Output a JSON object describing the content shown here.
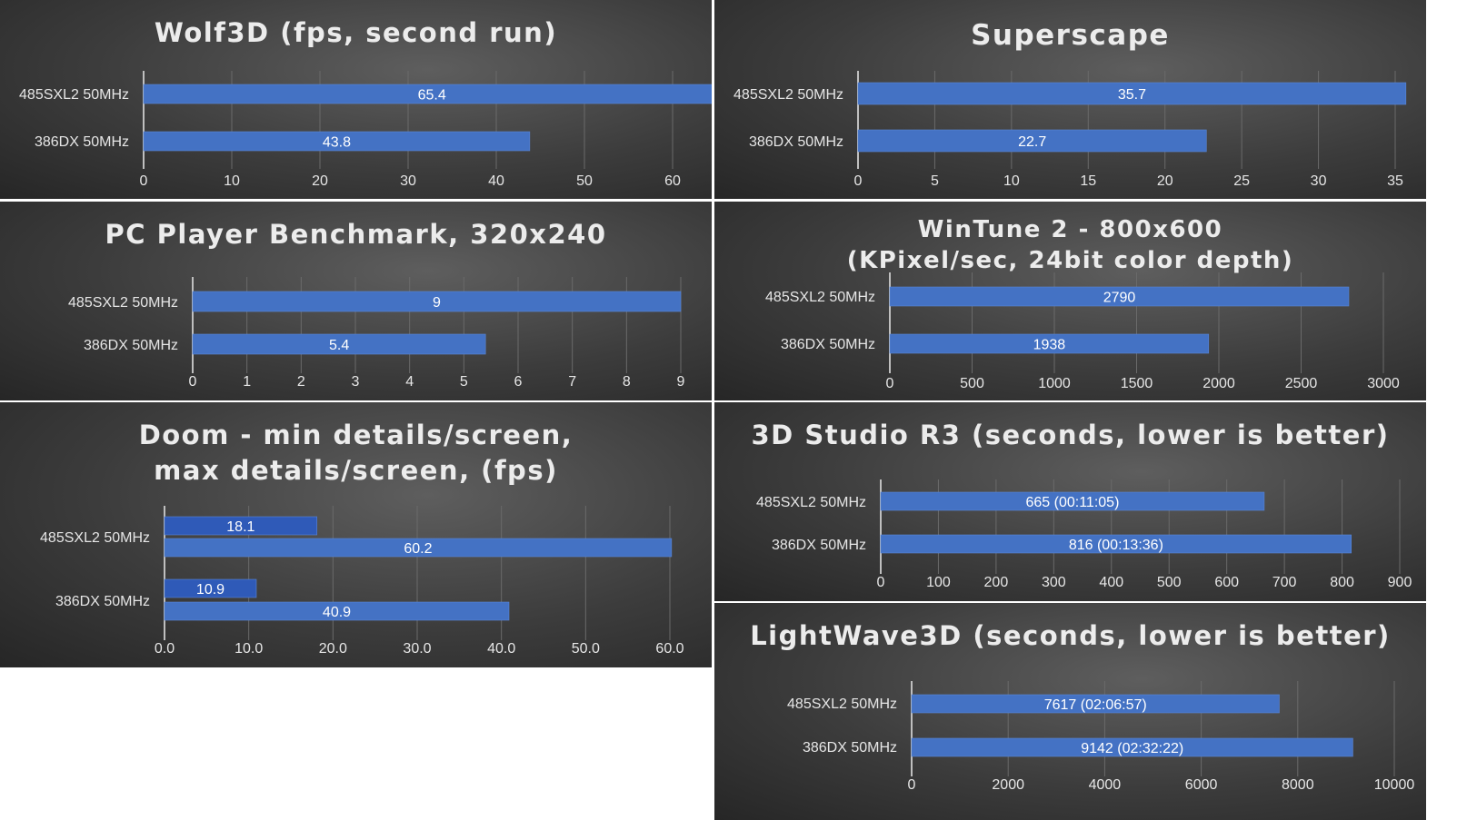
{
  "chart_data": [
    {
      "type": "bar",
      "orientation": "horizontal",
      "title": "Wolf3D (fps, second run)",
      "categories": [
        "485SXL2 50MHz",
        "386DX 50MHz"
      ],
      "series": [
        {
          "values": [
            65.4,
            43.8
          ],
          "labels": [
            "65.4",
            "43.8"
          ]
        }
      ],
      "xlim": [
        0,
        70
      ],
      "ticks": [
        "0",
        "10",
        "20",
        "30",
        "40",
        "50",
        "60"
      ],
      "grid": true
    },
    {
      "type": "bar",
      "orientation": "horizontal",
      "title": "Superscape",
      "categories": [
        "485SXL2 50MHz",
        "386DX 50MHz"
      ],
      "series": [
        {
          "values": [
            35.7,
            22.7
          ],
          "labels": [
            "35.7",
            "22.7"
          ]
        }
      ],
      "xlim": [
        0,
        37
      ],
      "ticks": [
        "0",
        "5",
        "10",
        "15",
        "20",
        "25",
        "30",
        "35"
      ],
      "grid": true
    },
    {
      "type": "bar",
      "orientation": "horizontal",
      "title": "PC Player Benchmark, 320x240",
      "categories": [
        "485SXL2 50MHz",
        "386DX 50MHz"
      ],
      "series": [
        {
          "values": [
            9,
            5.4
          ],
          "labels": [
            "9",
            "5.4"
          ]
        }
      ],
      "xlim": [
        0,
        9.5
      ],
      "ticks": [
        "0",
        "1",
        "2",
        "3",
        "4",
        "5",
        "6",
        "7",
        "8",
        "9"
      ],
      "grid": true
    },
    {
      "type": "bar",
      "orientation": "horizontal",
      "title": "WinTune 2 - 800x600\n(KPixel/sec, 24bit color depth)",
      "categories": [
        "485SXL2 50MHz",
        "386DX 50MHz"
      ],
      "series": [
        {
          "values": [
            2790,
            1938
          ],
          "labels": [
            "2790",
            "1938"
          ]
        }
      ],
      "xlim": [
        0,
        3200
      ],
      "ticks": [
        "0",
        "500",
        "1000",
        "1500",
        "2000",
        "2500",
        "3000"
      ],
      "grid": true
    },
    {
      "type": "bar",
      "orientation": "horizontal",
      "title": "Doom - min details/screen,\nmax details/screen, (fps)",
      "categories": [
        "485SXL2 50MHz",
        "386DX 50MHz"
      ],
      "series": [
        {
          "values": [
            18.1,
            10.9
          ],
          "labels": [
            "18.1",
            "10.9"
          ],
          "color": "#2f5ab8"
        },
        {
          "values": [
            60.2,
            40.9
          ],
          "labels": [
            "60.2",
            "40.9"
          ],
          "color": "#4472c4"
        }
      ],
      "xlim": [
        0,
        65
      ],
      "ticks": [
        "0.0",
        "10.0",
        "20.0",
        "30.0",
        "40.0",
        "50.0",
        "60.0"
      ],
      "grid": true
    },
    {
      "type": "bar",
      "orientation": "horizontal",
      "title": "3D Studio R3 (seconds, lower is better)",
      "categories": [
        "485SXL2 50MHz",
        "386DX 50MHz"
      ],
      "series": [
        {
          "values": [
            665,
            816
          ],
          "labels": [
            "665 (00:11:05)",
            "816 (00:13:36)"
          ]
        }
      ],
      "xlim": [
        0,
        930
      ],
      "ticks": [
        "0",
        "100",
        "200",
        "300",
        "400",
        "500",
        "600",
        "700",
        "800",
        "900"
      ],
      "grid": true
    },
    {
      "type": "bar",
      "orientation": "horizontal",
      "title": "LightWave3D (seconds, lower is better)",
      "categories": [
        "485SXL2 50MHz",
        "386DX 50MHz"
      ],
      "series": [
        {
          "values": [
            7617,
            9142
          ],
          "labels": [
            "7617 (02:06:57)",
            "9142 (02:32:22)"
          ]
        }
      ],
      "xlim": [
        0,
        10200
      ],
      "ticks": [
        "0",
        "2000",
        "4000",
        "6000",
        "8000",
        "10000"
      ],
      "grid": true
    }
  ],
  "colors": {
    "bar": "#4472c4",
    "bar_dark": "#2f5ab8",
    "text": "#e6e6e6",
    "grid": "#6a6a6a",
    "axis": "#bfbfbf"
  }
}
